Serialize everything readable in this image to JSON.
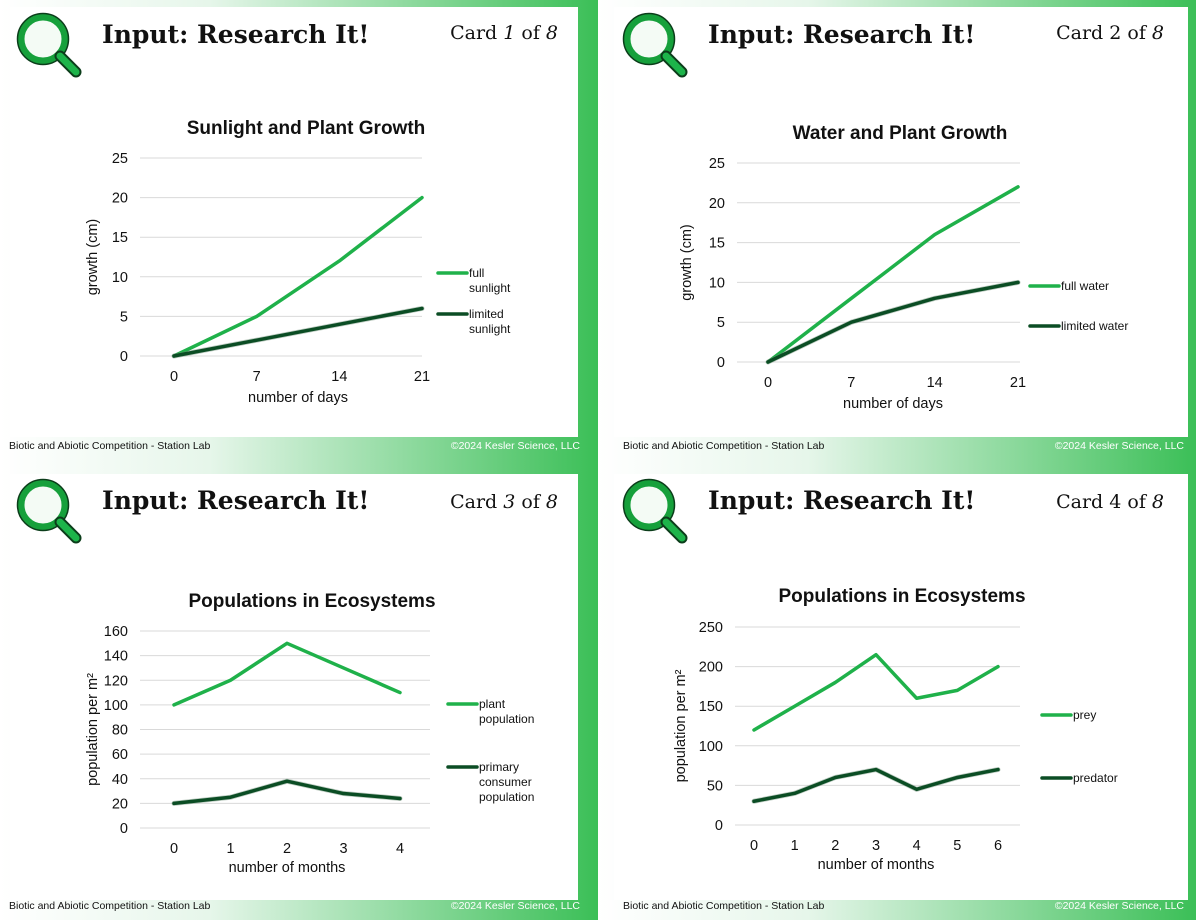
{
  "cards": [
    {
      "heading": "Input: Research It!",
      "card_prefix": "Card ",
      "card_index": "1",
      "card_sep": " of ",
      "card_total": "8",
      "footer_left": "Biotic and Abiotic Competition - Station Lab",
      "footer_right": "©2024 Kesler Science, LLC"
    },
    {
      "heading": "Input: Research It!",
      "card_prefix": "Card ",
      "card_index": "2",
      "card_sep": " of ",
      "card_total": "8",
      "footer_left": "Biotic and Abiotic Competition - Station Lab",
      "footer_right": "©2024 Kesler Science, LLC"
    },
    {
      "heading": "Input: Research It!",
      "card_prefix": "Card ",
      "card_index": "3",
      "card_sep": " of ",
      "card_total": "8",
      "footer_left": "Biotic and Abiotic Competition - Station Lab",
      "footer_right": "©2024 Kesler Science, LLC"
    },
    {
      "heading": "Input: Research It!",
      "card_prefix": "Card ",
      "card_index": "4",
      "card_sep": " of ",
      "card_total": "8",
      "footer_left": "Biotic and Abiotic Competition - Station Lab",
      "footer_right": "©2024 Kesler Science, LLC"
    }
  ],
  "icon": "magnifying-glass-icon",
  "colors": {
    "accent": "#2db84d",
    "light_series": "#1fb14a",
    "dark_series": "#0b4d24",
    "grid": "#d9d9d9"
  },
  "chart_data": [
    {
      "type": "line",
      "title": "Sunlight and Plant Growth",
      "xlabel": "number of days",
      "ylabel": "growth (cm)",
      "x": [
        0,
        7,
        14,
        21
      ],
      "ylim": [
        0,
        25
      ],
      "yticks": [
        0,
        5,
        10,
        15,
        20,
        25
      ],
      "grid": true,
      "legend_position": "right",
      "series": [
        {
          "name": "full sunlight",
          "values": [
            0,
            5,
            12,
            20
          ]
        },
        {
          "name": "limited sunlight",
          "values": [
            0,
            2,
            4,
            6
          ]
        }
      ]
    },
    {
      "type": "line",
      "title": "Water and Plant Growth",
      "xlabel": "number of days",
      "ylabel": "growth (cm)",
      "x": [
        0,
        7,
        14,
        21
      ],
      "ylim": [
        0,
        25
      ],
      "yticks": [
        0,
        5,
        10,
        15,
        20,
        25
      ],
      "grid": true,
      "legend_position": "right",
      "series": [
        {
          "name": "full water",
          "values": [
            0,
            8,
            16,
            22
          ]
        },
        {
          "name": "limited water",
          "values": [
            0,
            5,
            8,
            10
          ]
        }
      ]
    },
    {
      "type": "line",
      "title": "Populations in Ecosystems",
      "xlabel": "number of months",
      "ylabel": "population per m²",
      "x": [
        0,
        1,
        2,
        3,
        4
      ],
      "ylim": [
        0,
        160
      ],
      "yticks": [
        0,
        20,
        40,
        60,
        80,
        100,
        120,
        140,
        160
      ],
      "grid": true,
      "legend_position": "right",
      "series": [
        {
          "name": "plant population",
          "values": [
            100,
            120,
            150,
            130,
            110
          ]
        },
        {
          "name": "primary consumer population",
          "values": [
            20,
            25,
            38,
            28,
            24
          ]
        }
      ]
    },
    {
      "type": "line",
      "title": "Populations in Ecosystems",
      "xlabel": "number of months",
      "ylabel": "population per m²",
      "x": [
        0,
        1,
        2,
        3,
        4,
        5,
        6
      ],
      "ylim": [
        0,
        250
      ],
      "yticks": [
        0,
        50,
        100,
        150,
        200,
        250
      ],
      "grid": true,
      "legend_position": "right",
      "series": [
        {
          "name": "prey",
          "values": [
            120,
            150,
            180,
            215,
            160,
            170,
            200
          ]
        },
        {
          "name": "predator",
          "values": [
            30,
            40,
            60,
            70,
            45,
            60,
            70
          ]
        }
      ]
    }
  ]
}
